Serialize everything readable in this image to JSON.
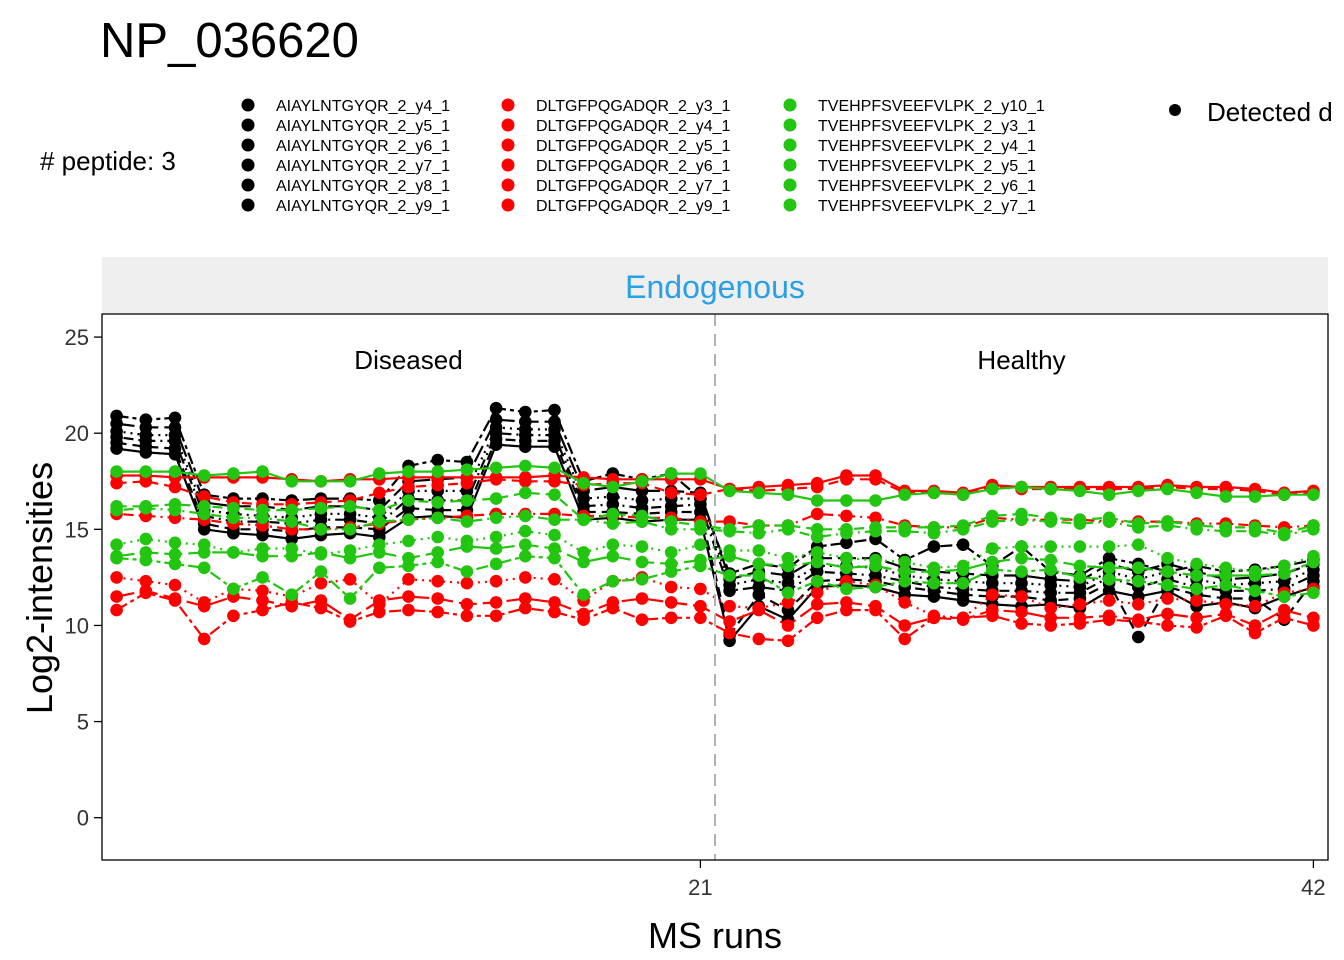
{
  "chart_data": {
    "type": "line",
    "title": "NP_036620",
    "peptide_count_label": "# peptide: 3",
    "panel_label": "Endogenous",
    "xlabel": "MS runs",
    "ylabel": "Log2-intensities",
    "xlim": [
      0.5,
      42.5
    ],
    "ylim": [
      -2.2,
      26.2
    ],
    "x_ticks": [
      21,
      42
    ],
    "y_ticks": [
      0,
      5,
      10,
      15,
      20,
      25
    ],
    "grid": false,
    "separator_x": 21.5,
    "group_labels": [
      {
        "label": "Diseased",
        "x": 11
      },
      {
        "label": "Healthy",
        "x": 32
      }
    ],
    "colors": {
      "black": "#000000",
      "red": "#ff0000",
      "green": "#22c50f",
      "panel_strip": "#efefef",
      "panel_label": "#2aa1e6",
      "separator": "#b3b3b3"
    },
    "legend": {
      "position": "top",
      "columns": [
        {
          "color": "#000000",
          "entries": [
            "AIAYLNTGYQR_2_y4_1",
            "AIAYLNTGYQR_2_y5_1",
            "AIAYLNTGYQR_2_y6_1",
            "AIAYLNTGYQR_2_y7_1",
            "AIAYLNTGYQR_2_y8_1",
            "AIAYLNTGYQR_2_y9_1"
          ]
        },
        {
          "color": "#ff0000",
          "entries": [
            "DLTGFPQGADQR_2_y3_1",
            "DLTGFPQGADQR_2_y4_1",
            "DLTGFPQGADQR_2_y5_1",
            "DLTGFPQGADQR_2_y6_1",
            "DLTGFPQGADQR_2_y7_1",
            "DLTGFPQGADQR_2_y9_1"
          ]
        },
        {
          "color": "#22c50f",
          "entries": [
            "TVEHPFSVEEFVLPK_2_y10_1",
            "TVEHPFSVEEFVLPK_2_y3_1",
            "TVEHPFSVEEFVLPK_2_y4_1",
            "TVEHPFSVEEFVLPK_2_y5_1",
            "TVEHPFSVEEFVLPK_2_y6_1",
            "TVEHPFSVEEFVLPK_2_y7_1"
          ]
        }
      ],
      "detected_label": "Detected d"
    },
    "x": [
      1,
      2,
      3,
      4,
      5,
      6,
      7,
      8,
      9,
      10,
      11,
      12,
      13,
      14,
      15,
      16,
      17,
      18,
      19,
      20,
      21,
      22,
      23,
      24,
      25,
      26,
      27,
      28,
      29,
      30,
      31,
      32,
      33,
      34,
      35,
      36,
      37,
      38,
      39,
      40,
      41,
      42
    ],
    "series": [
      {
        "peptide": "AIAYLNTGYQR",
        "color": "#000000",
        "dash": "solid",
        "values": [
          19.2,
          19.0,
          18.9,
          15.0,
          14.8,
          14.7,
          14.5,
          14.7,
          14.8,
          14.6,
          15.6,
          15.7,
          15.6,
          19.4,
          19.3,
          19.3,
          15.5,
          15.6,
          15.4,
          15.5,
          15.5,
          9.2,
          11.0,
          10.3,
          12.0,
          12.1,
          12.0,
          11.6,
          11.5,
          11.3,
          11.1,
          11.0,
          11.1,
          10.9,
          11.8,
          11.5,
          11.8,
          11.0,
          11.2,
          10.9,
          11.5,
          12.0
        ]
      },
      {
        "peptide": "AIAYLNTGYQR",
        "color": "#000000",
        "dash": "dash",
        "values": [
          19.5,
          19.3,
          19.2,
          15.3,
          15.0,
          15.0,
          14.9,
          15.1,
          15.1,
          15.0,
          16.1,
          16.0,
          16.0,
          19.7,
          19.6,
          19.6,
          15.9,
          15.9,
          15.8,
          15.9,
          15.9,
          9.5,
          11.6,
          10.8,
          12.3,
          12.4,
          12.3,
          12.0,
          11.8,
          11.6,
          11.5,
          11.5,
          11.3,
          11.4,
          12.2,
          9.4,
          12.0,
          11.6,
          11.4,
          11.4,
          10.3,
          12.3
        ]
      },
      {
        "peptide": "AIAYLNTGYQR",
        "color": "#000000",
        "dash": "dotdash",
        "values": [
          19.8,
          19.6,
          19.6,
          15.7,
          15.4,
          15.4,
          15.3,
          15.5,
          15.5,
          15.3,
          16.6,
          16.5,
          16.5,
          20.0,
          19.9,
          19.9,
          16.2,
          16.3,
          16.1,
          16.2,
          16.3,
          11.8,
          12.0,
          11.8,
          12.8,
          12.7,
          12.6,
          12.3,
          12.0,
          11.9,
          11.8,
          11.8,
          11.7,
          11.7,
          12.5,
          12.0,
          12.4,
          12.0,
          11.8,
          11.8,
          11.9,
          12.6
        ]
      },
      {
        "peptide": "AIAYLNTGYQR",
        "color": "#000000",
        "dash": "dot",
        "values": [
          20.1,
          19.9,
          19.9,
          16.0,
          15.8,
          15.7,
          15.6,
          15.8,
          15.8,
          15.6,
          17.0,
          17.0,
          17.0,
          20.3,
          20.2,
          20.2,
          16.6,
          16.7,
          16.5,
          16.6,
          16.6,
          12.1,
          12.4,
          12.2,
          13.1,
          13.1,
          13.0,
          12.6,
          12.4,
          12.3,
          12.2,
          12.2,
          12.1,
          12.0,
          12.8,
          12.4,
          12.8,
          12.4,
          12.1,
          12.2,
          12.3,
          12.9
        ]
      },
      {
        "peptide": "AIAYLNTGYQR",
        "color": "#000000",
        "dash": "longdash",
        "values": [
          20.5,
          20.3,
          20.3,
          16.4,
          16.2,
          16.2,
          16.0,
          16.2,
          16.2,
          16.0,
          17.5,
          17.6,
          17.7,
          20.7,
          20.6,
          20.6,
          17.0,
          17.2,
          17.0,
          17.0,
          16.9,
          12.4,
          12.8,
          12.6,
          13.5,
          13.5,
          13.5,
          13.0,
          12.8,
          12.7,
          12.6,
          12.6,
          12.4,
          12.3,
          13.2,
          12.8,
          13.2,
          12.8,
          12.4,
          12.5,
          12.7,
          13.2
        ]
      },
      {
        "peptide": "AIAYLNTGYQR",
        "color": "#000000",
        "dash": "twodash",
        "values": [
          20.9,
          20.7,
          20.8,
          16.8,
          16.6,
          16.6,
          16.5,
          16.6,
          16.6,
          16.5,
          18.3,
          18.6,
          18.5,
          21.3,
          21.1,
          21.2,
          17.5,
          17.9,
          17.6,
          17.9,
          16.6,
          12.7,
          13.2,
          13.0,
          14.1,
          14.3,
          14.5,
          13.4,
          14.1,
          14.2,
          13.1,
          14.1,
          12.8,
          12.6,
          13.5,
          13.2,
          12.8,
          13.1,
          12.8,
          12.9,
          13.1,
          13.4
        ]
      },
      {
        "peptide": "DLTGFPQGADQR",
        "color": "#ff0000",
        "dash": "solid",
        "values": [
          17.8,
          17.8,
          17.7,
          17.7,
          17.7,
          17.7,
          17.6,
          17.5,
          17.6,
          17.6,
          17.7,
          17.7,
          17.7,
          17.7,
          17.7,
          17.8,
          17.7,
          17.6,
          17.6,
          17.6,
          17.6,
          17.1,
          17.2,
          17.3,
          17.4,
          17.8,
          17.8,
          17.0,
          17.0,
          16.9,
          17.3,
          17.2,
          17.2,
          17.2,
          17.2,
          17.2,
          17.3,
          17.2,
          17.2,
          17.1,
          16.9,
          17.0
        ]
      },
      {
        "peptide": "DLTGFPQGADQR",
        "color": "#ff0000",
        "dash": "dash",
        "values": [
          17.4,
          17.5,
          17.2,
          16.7,
          16.4,
          16.3,
          16.3,
          16.4,
          16.5,
          16.9,
          17.2,
          17.3,
          17.4,
          17.6,
          17.5,
          17.5,
          17.3,
          17.4,
          17.4,
          16.9,
          16.8,
          17.1,
          17.0,
          17.1,
          17.2,
          17.6,
          17.6,
          16.9,
          16.9,
          16.8,
          17.2,
          17.1,
          17.1,
          17.1,
          17.1,
          17.1,
          17.2,
          17.1,
          17.1,
          17.0,
          16.8,
          16.9
        ]
      },
      {
        "peptide": "DLTGFPQGADQR",
        "color": "#ff0000",
        "dash": "dotdash",
        "values": [
          15.8,
          15.7,
          15.6,
          15.5,
          15.3,
          15.2,
          15.0,
          15.0,
          15.1,
          15.3,
          15.5,
          15.6,
          15.7,
          15.8,
          15.8,
          15.8,
          15.7,
          15.7,
          15.6,
          15.6,
          15.4,
          15.4,
          15.2,
          15.2,
          15.8,
          15.7,
          15.6,
          15.2,
          15.1,
          15.1,
          15.6,
          15.5,
          15.5,
          15.5,
          15.4,
          15.4,
          15.4,
          15.3,
          15.3,
          15.2,
          15.1,
          15.2
        ]
      },
      {
        "peptide": "DLTGFPQGADQR",
        "color": "#ff0000",
        "dash": "dot",
        "values": [
          12.5,
          12.3,
          12.1,
          11.2,
          11.9,
          11.8,
          11.5,
          12.2,
          12.4,
          11.1,
          12.4,
          12.3,
          12.2,
          12.3,
          12.5,
          12.4,
          11.3,
          12.3,
          12.5,
          12.0,
          11.9,
          11.0,
          10.9,
          11.2,
          11.7,
          12.3,
          12.1,
          11.2,
          10.5,
          10.4,
          11.6,
          11.5,
          10.9,
          11.1,
          11.3,
          11.1,
          11.4,
          11.3,
          11.1,
          11.0,
          11.7,
          11.9
        ]
      },
      {
        "peptide": "DLTGFPQGADQR",
        "color": "#ff0000",
        "dash": "longdash",
        "values": [
          11.5,
          11.8,
          11.4,
          11.0,
          11.5,
          11.3,
          11.0,
          11.3,
          10.3,
          11.3,
          11.5,
          11.4,
          11.1,
          11.2,
          11.4,
          11.2,
          10.6,
          11.2,
          11.4,
          11.2,
          11.0,
          10.2,
          10.8,
          10.0,
          11.1,
          11.2,
          11.0,
          10.0,
          10.4,
          10.3,
          10.8,
          10.7,
          10.4,
          10.4,
          10.5,
          10.3,
          10.6,
          10.4,
          10.6,
          10.0,
          10.8,
          10.4
        ]
      },
      {
        "peptide": "DLTGFPQGADQR",
        "color": "#ff0000",
        "dash": "twodash",
        "values": [
          10.8,
          11.7,
          11.3,
          9.3,
          10.5,
          10.8,
          11.2,
          10.9,
          10.2,
          10.7,
          10.8,
          10.7,
          10.5,
          10.5,
          10.9,
          10.7,
          10.3,
          10.9,
          10.3,
          10.4,
          10.4,
          9.6,
          9.3,
          9.2,
          10.4,
          10.8,
          10.8,
          9.3,
          10.4,
          10.4,
          10.5,
          10.1,
          10.0,
          10.1,
          10.3,
          10.2,
          10.0,
          9.9,
          10.5,
          9.6,
          10.4,
          10.0
        ]
      },
      {
        "peptide": "TVEHPFSVEEFVLPK",
        "color": "#22c50f",
        "dash": "solid",
        "values": [
          18.0,
          18.0,
          18.0,
          17.8,
          17.9,
          18.0,
          17.5,
          17.5,
          17.5,
          17.9,
          18.0,
          18.0,
          18.1,
          18.2,
          18.3,
          18.2,
          17.4,
          17.2,
          17.5,
          17.9,
          17.9,
          17.0,
          16.9,
          16.8,
          16.5,
          16.5,
          16.5,
          16.8,
          16.9,
          16.8,
          17.1,
          17.2,
          17.1,
          17.0,
          16.8,
          17.0,
          17.1,
          16.9,
          16.7,
          16.7,
          16.8,
          16.8
        ]
      },
      {
        "peptide": "TVEHPFSVEEFVLPK",
        "color": "#22c50f",
        "dash": "dash",
        "values": [
          16.2,
          16.2,
          16.3,
          16.2,
          16.1,
          16.0,
          16.0,
          16.1,
          16.2,
          16.0,
          16.5,
          16.4,
          16.5,
          16.6,
          16.9,
          16.8,
          15.5,
          15.8,
          15.7,
          15.4,
          15.2,
          15.0,
          15.2,
          15.2,
          15.0,
          15.0,
          15.1,
          15.1,
          15.1,
          15.2,
          15.7,
          15.8,
          15.6,
          15.5,
          15.6,
          15.3,
          15.4,
          15.2,
          15.1,
          15.1,
          14.8,
          15.2
        ]
      },
      {
        "peptide": "TVEHPFSVEEFVLPK",
        "color": "#22c50f",
        "dash": "dotdash",
        "values": [
          16.0,
          16.1,
          16.0,
          15.8,
          15.6,
          15.6,
          15.4,
          15.0,
          15.0,
          15.4,
          15.5,
          15.6,
          15.4,
          15.6,
          15.7,
          15.5,
          15.5,
          15.3,
          15.4,
          15.0,
          15.0,
          14.9,
          14.8,
          15.0,
          14.6,
          14.8,
          14.9,
          14.9,
          14.8,
          15.0,
          15.4,
          15.5,
          15.4,
          15.3,
          15.4,
          15.1,
          15.2,
          15.0,
          14.9,
          14.9,
          14.7,
          15.0
        ]
      },
      {
        "peptide": "TVEHPFSVEEFVLPK",
        "color": "#22c50f",
        "dash": "dot",
        "values": [
          14.2,
          14.5,
          14.3,
          14.2,
          13.8,
          14.0,
          14.0,
          13.7,
          13.9,
          14.2,
          14.4,
          14.6,
          14.4,
          14.6,
          14.9,
          14.7,
          13.8,
          14.2,
          14.1,
          13.8,
          14.2,
          13.9,
          13.9,
          13.5,
          13.8,
          13.5,
          13.4,
          13.3,
          13.0,
          13.1,
          14.0,
          14.1,
          14.1,
          14.1,
          14.1,
          14.2,
          13.5,
          13.2,
          13.0,
          12.8,
          13.1,
          13.6
        ]
      },
      {
        "peptide": "TVEHPFSVEEFVLPK",
        "color": "#22c50f",
        "dash": "longdash",
        "values": [
          13.6,
          13.8,
          13.7,
          13.8,
          13.8,
          13.6,
          13.6,
          13.8,
          13.5,
          13.8,
          13.5,
          13.8,
          14.1,
          14.0,
          14.2,
          14.0,
          13.3,
          13.6,
          13.3,
          13.2,
          13.4,
          13.6,
          13.2,
          13.1,
          13.3,
          13.0,
          13.1,
          12.8,
          12.8,
          12.9,
          13.3,
          13.5,
          13.4,
          13.1,
          13.0,
          13.0,
          12.8,
          12.6,
          12.6,
          12.6,
          12.7,
          13.3
        ]
      },
      {
        "peptide": "TVEHPFSVEEFVLPK",
        "color": "#22c50f",
        "dash": "twodash",
        "values": [
          13.5,
          13.4,
          13.2,
          13.0,
          11.9,
          12.5,
          11.6,
          12.8,
          11.4,
          13.0,
          13.1,
          13.3,
          12.8,
          13.2,
          13.6,
          13.5,
          11.6,
          12.3,
          12.4,
          12.8,
          13.1,
          12.6,
          12.6,
          11.7,
          12.3,
          11.9,
          12.0,
          12.3,
          12.2,
          12.2,
          12.9,
          12.8,
          12.9,
          12.5,
          12.4,
          12.3,
          12.1,
          11.9,
          12.1,
          11.8,
          11.5,
          11.7
        ]
      }
    ]
  }
}
